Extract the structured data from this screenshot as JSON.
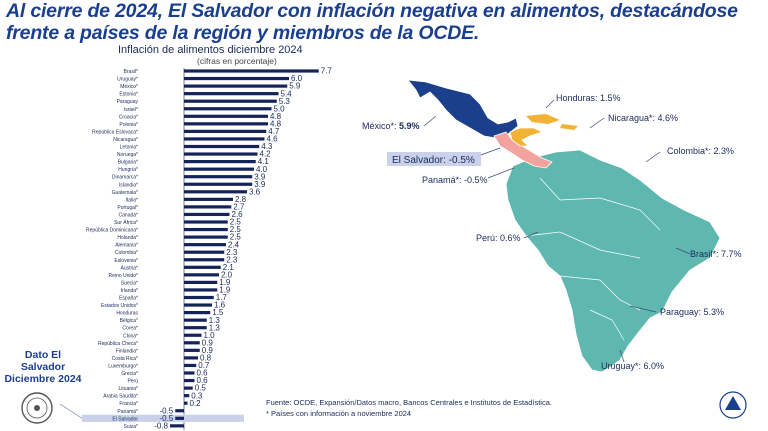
{
  "header": {
    "title_line1": "Al cierre de 2024, El Salvador con inflación negativa en alimentos, destacándose",
    "title_line2": "frente a países de la región y miembros de la OCDE."
  },
  "side_label": {
    "line1": "Dato El Salvador",
    "line2": "Diciembre 2024"
  },
  "source": {
    "line1": "Fuente: OCDE, Expansión/Datos macro, Bancos Centrales e Institutos de Estadística.",
    "line2": "* Países con información a noviembre 2024"
  },
  "colors": {
    "bar": "#14245a",
    "highlight": "#c9d2ea",
    "title": "#1a3f8f",
    "mexico": "#1b3f8b",
    "central": "#f2a39e",
    "honduras_nicaragua": "#f2b233",
    "south_america": "#5fb8b0"
  },
  "chart_data": {
    "type": "bar",
    "orientation": "horizontal",
    "title": "Inflación de alimentos diciembre 2024",
    "subtitle": "(cifras en porcentaje)",
    "categories": [
      "Brasil*",
      "Uruguay*",
      "México*",
      "Estonia*",
      "Paraguay",
      "Israel*",
      "Croacia*",
      "Polonia*",
      "República Eslovaca*",
      "Nicaragua*",
      "Letonia*",
      "Noruega*",
      "Bulgaria*",
      "Hungría*",
      "Dinamarca*",
      "Islandia*",
      "Guatemala*",
      "Italia*",
      "Portugal*",
      "Canadá*",
      "Sur África*",
      "República Dominicana*",
      "Holanda*",
      "Alemania*",
      "Colombia*",
      "Eslovenia*",
      "Austria*",
      "Reino Unido*",
      "Suecia*",
      "Irlanda*",
      "España*",
      "Estados Unidos*",
      "Honduras",
      "Bélgica*",
      "Corea*",
      "China*",
      "República Checa*",
      "Finlandia*",
      "Costa Rica*",
      "Luxemburgo*",
      "Grecia*",
      "Perú",
      "Lituania*",
      "Arabia Saudita*",
      "Francia*",
      "Panamá*",
      "El Salvador",
      "Suiza*"
    ],
    "values": [
      7.7,
      6.0,
      5.9,
      5.4,
      5.3,
      5.0,
      4.8,
      4.8,
      4.7,
      4.6,
      4.3,
      4.2,
      4.1,
      4.0,
      3.9,
      3.9,
      3.6,
      2.8,
      2.7,
      2.6,
      2.5,
      2.5,
      2.5,
      2.4,
      2.3,
      2.3,
      2.1,
      2.0,
      1.9,
      1.9,
      1.7,
      1.6,
      1.5,
      1.3,
      1.3,
      1.0,
      0.9,
      0.9,
      0.8,
      0.7,
      0.6,
      0.6,
      0.5,
      0.3,
      0.2,
      -0.5,
      -0.5,
      -0.8
    ],
    "value_labels": [
      "7.7",
      "6.0",
      "5.9",
      "5.4",
      "5.3",
      "5.0",
      "4.8",
      "4.8",
      "4.7",
      "4.6",
      "4.3",
      "4.2",
      "4.1",
      "4.0",
      "3.9",
      "3.9",
      "3.6",
      "2.8",
      "2.7",
      "2.6",
      "2.5",
      "2.5",
      "2.5",
      "2.4",
      "2.3",
      "2.3",
      "2.1",
      "2.0",
      "1.9",
      "1.9",
      "1.7",
      "1.6",
      "1.5",
      "1.3",
      "1.3",
      "1.0",
      "0.9",
      "0.9",
      "0.8",
      "0.7",
      "0.6",
      "0.6",
      "0.5",
      "0.3",
      "0.2",
      "-0.5",
      "-0.5",
      "-0.8"
    ],
    "highlight_category": "El Salvador"
  },
  "map_labels": {
    "honduras": "Honduras: 1.5%",
    "nicaragua": "Nicaragua*: 4.6%",
    "mexico_name": "México*: ",
    "mexico_value": "5.9%",
    "colombia": "Colombia*: 2.3%",
    "el_salvador": "El Salvador: -0.5%",
    "panama": "Panamá*: -0.5%",
    "peru": "Perú: 0.6%",
    "brasil": "Brasil*: 7.7%",
    "paraguay": "Paraguay: 5.3%",
    "uruguay": "Uruguay*: 6.0%"
  }
}
